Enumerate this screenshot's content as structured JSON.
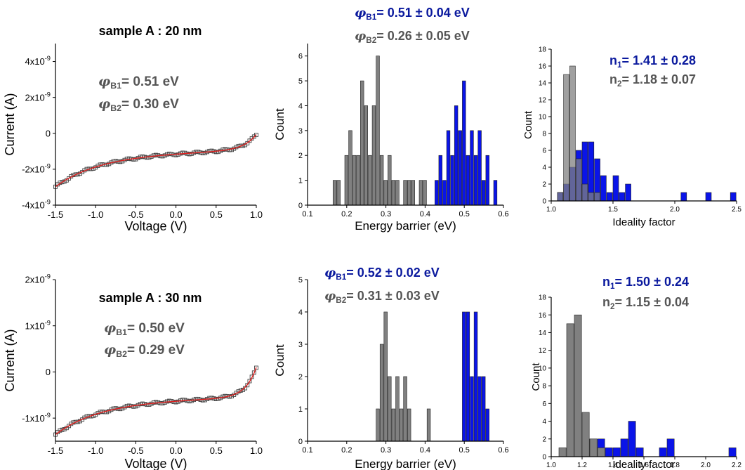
{
  "colors": {
    "series1": "#0a14e8",
    "series2": "#808080",
    "overlap": "#4f5aa0",
    "fit": "#e0201f",
    "axis": "#000000",
    "text_blue": "#0b1a9e",
    "text_gray": "#555555"
  },
  "chart_data": [
    {
      "panel": "a1",
      "type": "scatter",
      "title": "sample A : 20 nm",
      "xlabel": "Voltage (V)",
      "ylabel": "Current (A)",
      "xlim": [
        -1.5,
        1.0
      ],
      "ylim": [
        -4e-09,
        5e-09
      ],
      "xticks": [
        -1.5,
        -1.0,
        -0.5,
        0.0,
        0.5,
        1.0
      ],
      "xtick_labels": [
        "-1.5",
        "-1.0",
        "-0.5",
        "0.0",
        "0.5",
        "1.0"
      ],
      "yticks": [
        -4e-09,
        -2e-09,
        0,
        2e-09,
        4e-09
      ],
      "ytick_labels": [
        {
          "base": "-4x10",
          "exp": "-9"
        },
        {
          "base": "-2x10",
          "exp": "-9"
        },
        {
          "base": "0",
          "exp": ""
        },
        {
          "base": "2x10",
          "exp": "-9"
        },
        {
          "base": "4x10",
          "exp": "-9"
        }
      ],
      "annotations": [
        {
          "sym": "φ",
          "sub": "B1",
          "text": "= 0.51 eV"
        },
        {
          "sym": "φ",
          "sub": "B2",
          "text": "= 0.30 eV"
        }
      ],
      "iv": {
        "xmin": -1.5,
        "xmax": 1.0,
        "a": 1.2e-09,
        "b": 6.2,
        "c": 1.05,
        "d": 1.5e-10,
        "e": 0.1
      },
      "series": [
        {
          "name": "measured",
          "style": "open-square"
        },
        {
          "name": "fit",
          "style": "line"
        }
      ]
    },
    {
      "panel": "b1",
      "type": "bar",
      "xlabel": "Energy barrier (eV)",
      "ylabel": "Count",
      "xlim": [
        0.1,
        0.6
      ],
      "ylim": [
        0,
        6.5
      ],
      "bin_width": 0.01,
      "xticks": [
        0.1,
        0.2,
        0.3,
        0.4,
        0.5,
        0.6
      ],
      "xtick_labels": [
        "0.1",
        "0.2",
        "0.3",
        "0.4",
        "0.5",
        "0.6"
      ],
      "yticks": [
        0,
        1,
        2,
        3,
        4,
        5,
        6
      ],
      "ytick_labels": [
        "0",
        "1",
        "2",
        "3",
        "4",
        "5",
        "6"
      ],
      "annotations": [
        {
          "sym": "φ",
          "sub": "B1",
          "text": "= 0.51 ± 0.04 eV",
          "color": "blue"
        },
        {
          "sym": "φ",
          "sub": "B2",
          "text": "= 0.26 ± 0.05 eV",
          "color": "gray"
        }
      ],
      "series": [
        {
          "color": "gray",
          "x": [
            0.17,
            0.18,
            0.2,
            0.21,
            0.22,
            0.23,
            0.24,
            0.25,
            0.26,
            0.27,
            0.28,
            0.29,
            0.3,
            0.31,
            0.32,
            0.33,
            0.35,
            0.36,
            0.37,
            0.39,
            0.4
          ],
          "values": [
            1,
            1,
            2,
            3,
            2,
            2,
            5,
            4,
            2,
            4,
            6,
            2,
            1,
            2,
            1,
            1,
            1,
            1,
            1,
            1,
            1
          ]
        },
        {
          "color": "blue",
          "x": [
            0.43,
            0.44,
            0.45,
            0.46,
            0.47,
            0.48,
            0.49,
            0.5,
            0.51,
            0.52,
            0.53,
            0.54,
            0.55,
            0.56,
            0.58
          ],
          "values": [
            1,
            2,
            1,
            3,
            2,
            4,
            3,
            5,
            2,
            3,
            2,
            3,
            1,
            2,
            1
          ]
        }
      ]
    },
    {
      "panel": "c1",
      "type": "bar",
      "xlabel": "Ideality factor",
      "ylabel": "Count",
      "xlim": [
        1.0,
        2.5
      ],
      "ylim": [
        0,
        18
      ],
      "bin_width": 0.05,
      "xticks": [
        1.0,
        1.5,
        2.0,
        2.5
      ],
      "xtick_labels": [
        "1.0",
        "1.5",
        "2.0",
        "2.5"
      ],
      "yticks": [
        0,
        2,
        4,
        6,
        8,
        10,
        12,
        14,
        16,
        18
      ],
      "ytick_labels": [
        "0",
        "2",
        "4",
        "6",
        "8",
        "10",
        "12",
        "14",
        "16",
        "18"
      ],
      "annotations": [
        {
          "sym": "n",
          "sub": "1",
          "text": "= 1.41 ± 0.28",
          "color": "blue"
        },
        {
          "sym": "n",
          "sub": "2",
          "text": "= 1.18 ± 0.07",
          "color": "gray"
        }
      ],
      "series": [
        {
          "color": "blue",
          "x": [
            1.075,
            1.125,
            1.175,
            1.225,
            1.275,
            1.325,
            1.375,
            1.425,
            1.475,
            1.525,
            1.575,
            1.625,
            2.075,
            2.275,
            2.475
          ],
          "values": [
            1,
            2,
            4,
            6,
            7,
            7,
            5,
            3,
            1,
            3,
            1,
            2,
            1,
            1,
            1
          ]
        },
        {
          "color": "gray",
          "x": [
            1.075,
            1.125,
            1.175,
            1.225,
            1.275,
            1.325,
            1.375
          ],
          "values": [
            1,
            15,
            16,
            5,
            2,
            1,
            1
          ]
        }
      ]
    },
    {
      "panel": "a2",
      "type": "scatter",
      "title": "sample A : 30 nm",
      "xlabel": "Voltage (V)",
      "ylabel": "Current (A)",
      "xlim": [
        -1.5,
        1.0
      ],
      "ylim": [
        -1.5e-09,
        2e-09
      ],
      "xticks": [
        -1.5,
        -1.0,
        -0.5,
        0.0,
        0.5,
        1.0
      ],
      "xtick_labels": [
        "-1.5",
        "-1.0",
        "-0.5",
        "0.0",
        "0.5",
        "1.0"
      ],
      "yticks": [
        -1e-09,
        0,
        1e-09,
        2e-09
      ],
      "ytick_labels": [
        {
          "base": "-1x10",
          "exp": "-9"
        },
        {
          "base": "0",
          "exp": ""
        },
        {
          "base": "1x10",
          "exp": "-9"
        },
        {
          "base": "2x10",
          "exp": "-9"
        }
      ],
      "annotations": [
        {
          "sym": "φ",
          "sub": "B1",
          "text": "= 0.50 eV"
        },
        {
          "sym": "φ",
          "sub": "B2",
          "text": "= 0.29 eV"
        }
      ],
      "iv": {
        "xmin": -1.5,
        "xmax": 1.0,
        "a": 6.5e-10,
        "b": 7.5,
        "c": 1.0,
        "d": 6e-11,
        "e": 0.07
      },
      "series": [
        {
          "name": "measured",
          "style": "open-square"
        },
        {
          "name": "fit",
          "style": "line"
        }
      ]
    },
    {
      "panel": "b2",
      "type": "bar",
      "xlabel": "Energy barrier (eV)",
      "ylabel": "Count",
      "xlim": [
        0.1,
        0.6
      ],
      "ylim": [
        0,
        5
      ],
      "bin_width": 0.01,
      "xticks": [
        0.1,
        0.2,
        0.3,
        0.4,
        0.5,
        0.6
      ],
      "xtick_labels": [
        "0.1",
        "0.2",
        "0.3",
        "0.4",
        "0.5",
        "0.6"
      ],
      "yticks": [
        0,
        1,
        2,
        3,
        4,
        5
      ],
      "ytick_labels": [
        "0",
        "1",
        "2",
        "3",
        "4",
        "5"
      ],
      "annotations": [
        {
          "sym": "φ",
          "sub": "B1",
          "text": "= 0.52 ± 0.02 eV",
          "color": "blue"
        },
        {
          "sym": "φ",
          "sub": "B2",
          "text": "= 0.31 ± 0.03 eV",
          "color": "gray"
        }
      ],
      "series": [
        {
          "color": "gray",
          "x": [
            0.28,
            0.29,
            0.3,
            0.31,
            0.32,
            0.33,
            0.34,
            0.35,
            0.36,
            0.41
          ],
          "values": [
            1,
            3,
            4,
            2,
            1,
            2,
            1,
            2,
            1,
            1
          ]
        },
        {
          "color": "blue",
          "x": [
            0.5,
            0.51,
            0.52,
            0.53,
            0.54,
            0.55,
            0.56
          ],
          "values": [
            4,
            4,
            2,
            4,
            2,
            2,
            1
          ]
        }
      ]
    },
    {
      "panel": "c2",
      "type": "bar",
      "xlabel": "Ideality factor",
      "ylabel": "Count",
      "xlim": [
        1.0,
        2.2
      ],
      "ylim": [
        0,
        18
      ],
      "bin_width": 0.05,
      "xticks": [
        1.0,
        1.2,
        1.4,
        1.6,
        1.8,
        2.0,
        2.2
      ],
      "xtick_labels": [
        "1.0",
        "1.2",
        "1.4",
        "1.6",
        "1.8",
        "2.0",
        "2.2"
      ],
      "yticks": [
        0,
        2,
        4,
        6,
        8,
        10,
        12,
        14,
        16,
        18
      ],
      "ytick_labels": [
        "0",
        "2",
        "4",
        "6",
        "8",
        "10",
        "12",
        "14",
        "16",
        "18"
      ],
      "annotations": [
        {
          "sym": "n",
          "sub": "1",
          "text": "= 1.50 ± 0.24",
          "color": "blue"
        },
        {
          "sym": "n",
          "sub": "2",
          "text": "= 1.15 ± 0.04",
          "color": "gray"
        }
      ],
      "series": [
        {
          "color": "blue",
          "x": [
            1.275,
            1.325,
            1.375,
            1.425,
            1.475,
            1.525,
            1.575,
            1.725,
            1.775,
            2.175
          ],
          "values": [
            2,
            2,
            1,
            1,
            2,
            4,
            1,
            1,
            2,
            1
          ]
        },
        {
          "color": "gray",
          "x": [
            1.075,
            1.125,
            1.175,
            1.225,
            1.275,
            1.325
          ],
          "values": [
            1,
            15,
            16,
            5,
            2,
            1
          ]
        }
      ]
    }
  ]
}
